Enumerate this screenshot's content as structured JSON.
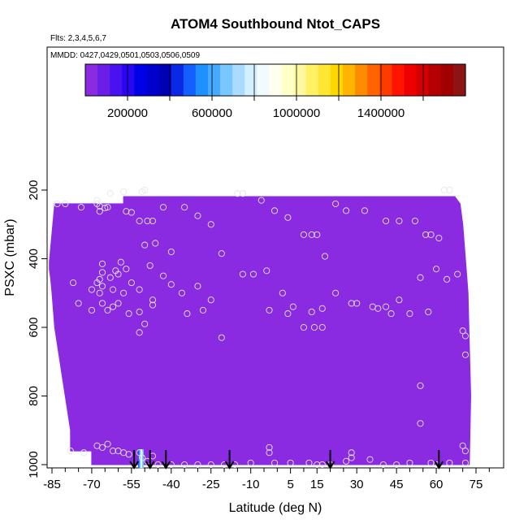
{
  "chart_data": {
    "type": "heatmap",
    "title": "ATOM4 Southbound Ntot_CAPS",
    "flights_label": "Flts: 2,3,4,5,6,7",
    "dates_label": "MMDD: 0427,0429,0501,0503,0506,0509",
    "xlabel": "Latitude (deg N)",
    "ylabel": "PSXC (mbar)",
    "xlim": [
      -87,
      80
    ],
    "ylim": [
      1010,
      40
    ],
    "y_reversed": true,
    "x_ticks": [
      -85,
      -70,
      -55,
      -40,
      -25,
      -10,
      5,
      15,
      30,
      45,
      60,
      75
    ],
    "x_minor_ticks": [
      -80,
      -75,
      -65,
      -60,
      -50,
      -45,
      -35,
      -30,
      -20,
      -15,
      -5,
      0,
      10,
      20,
      25,
      35,
      40,
      50,
      55,
      65,
      70,
      80
    ],
    "y_ticks": [
      200,
      400,
      600,
      800,
      1000
    ],
    "colorbar": {
      "ticks": [
        200000,
        600000,
        1000000,
        1400000
      ],
      "tick_labels": [
        "200000",
        "600000",
        "1000000",
        "1400000"
      ],
      "min": 0,
      "max": 1800000,
      "colors": [
        "#8a2be2",
        "#6a1ee8",
        "#4a12ee",
        "#2a06f2",
        "#0000e6",
        "#0000cc",
        "#0000b4",
        "#0a28e6",
        "#1460ff",
        "#1e90ff",
        "#46aaff",
        "#78c8ff",
        "#aadcff",
        "#d2f0ff",
        "#f0faff",
        "#fffff0",
        "#ffffc8",
        "#fff8a0",
        "#fff064",
        "#ffe632",
        "#ffd700",
        "#ffb400",
        "#ff8c00",
        "#ff6400",
        "#ff3c00",
        "#ff1400",
        "#ee0000",
        "#d20000",
        "#b40000",
        "#a00000",
        "#8c1414"
      ]
    },
    "field_color": "#8a2be2",
    "field_value": 0,
    "surface_hot_spot": {
      "lat_range": [
        -52.5,
        -50.5
      ],
      "colors": [
        "#2a5cff",
        "#6fd0ff",
        "#ffffff",
        "#6fd0ff"
      ]
    },
    "field_outline": [
      [
        -86,
        410
      ],
      [
        -84,
        240
      ],
      [
        -58,
        240
      ],
      [
        -58,
        225
      ],
      [
        -58,
        219
      ],
      [
        -38,
        219
      ],
      [
        -38,
        219
      ],
      [
        67,
        219
      ],
      [
        67,
        219
      ],
      [
        69,
        240
      ],
      [
        70,
        300
      ],
      [
        71,
        400
      ],
      [
        72,
        500
      ],
      [
        72.5,
        650
      ],
      [
        73,
        800
      ],
      [
        72.5,
        1000
      ],
      [
        -70,
        1000
      ],
      [
        -70,
        960
      ],
      [
        -78,
        960
      ],
      [
        -78,
        900
      ],
      [
        -80,
        800
      ],
      [
        -82,
        700
      ],
      [
        -84,
        600
      ],
      [
        -85,
        500
      ],
      [
        -85.5,
        460
      ],
      [
        -86,
        430
      ]
    ],
    "measurement_points": [
      [
        -83,
        240
      ],
      [
        -80,
        240
      ],
      [
        -74,
        250
      ],
      [
        -68,
        230
      ],
      [
        -68,
        240
      ],
      [
        -67,
        247
      ],
      [
        -67,
        262
      ],
      [
        -65,
        252
      ],
      [
        -64,
        250
      ],
      [
        -63,
        210
      ],
      [
        -58,
        205
      ],
      [
        -57,
        262
      ],
      [
        -55,
        265
      ],
      [
        -52,
        290
      ],
      [
        -51,
        205
      ],
      [
        -50,
        200
      ],
      [
        -49,
        290
      ],
      [
        -47,
        290
      ],
      [
        -43,
        250
      ],
      [
        -40,
        380
      ],
      [
        -35,
        250
      ],
      [
        -30,
        275
      ],
      [
        -25,
        300
      ],
      [
        -21,
        385
      ],
      [
        -15,
        210
      ],
      [
        -13,
        210
      ],
      [
        -6,
        230
      ],
      [
        -1,
        260
      ],
      [
        4,
        280
      ],
      [
        10,
        330
      ],
      [
        13,
        330
      ],
      [
        15,
        330
      ],
      [
        18,
        393
      ],
      [
        22,
        240
      ],
      [
        26,
        260
      ],
      [
        33,
        260
      ],
      [
        41,
        290
      ],
      [
        46,
        290
      ],
      [
        52,
        290
      ],
      [
        56,
        330
      ],
      [
        58,
        330
      ],
      [
        61,
        340
      ],
      [
        63,
        200
      ],
      [
        65,
        200
      ],
      [
        -66,
        415
      ],
      [
        -66,
        440
      ],
      [
        -63,
        455
      ],
      [
        -61,
        435
      ],
      [
        -60,
        445
      ],
      [
        -59,
        410
      ],
      [
        -57,
        430
      ],
      [
        -67,
        460
      ],
      [
        -68,
        470
      ],
      [
        -66,
        480
      ],
      [
        -62,
        490
      ],
      [
        -67,
        500
      ],
      [
        -70,
        490
      ],
      [
        -77,
        470
      ],
      [
        -75,
        530
      ],
      [
        -70,
        550
      ],
      [
        -66,
        530
      ],
      [
        -64,
        550
      ],
      [
        -62,
        540
      ],
      [
        -60,
        530
      ],
      [
        -58,
        500
      ],
      [
        -55,
        470
      ],
      [
        -52,
        490
      ],
      [
        -50,
        360
      ],
      [
        -48,
        420
      ],
      [
        -46,
        355
      ],
      [
        -43,
        450
      ],
      [
        -40,
        475
      ],
      [
        -36,
        500
      ],
      [
        -34,
        560
      ],
      [
        -30,
        480
      ],
      [
        -28,
        550
      ],
      [
        -25,
        520
      ],
      [
        -21,
        630
      ],
      [
        -13,
        445
      ],
      [
        -9,
        445
      ],
      [
        -4,
        435
      ],
      [
        -3,
        550
      ],
      [
        2,
        500
      ],
      [
        4,
        560
      ],
      [
        6,
        540
      ],
      [
        10,
        600
      ],
      [
        13,
        555
      ],
      [
        14,
        600
      ],
      [
        17,
        600
      ],
      [
        17,
        545
      ],
      [
        22,
        500
      ],
      [
        28,
        530
      ],
      [
        30,
        530
      ],
      [
        36,
        540
      ],
      [
        38,
        545
      ],
      [
        41,
        540
      ],
      [
        43,
        560
      ],
      [
        46,
        520
      ],
      [
        50,
        560
      ],
      [
        54,
        455
      ],
      [
        57,
        555
      ],
      [
        60,
        430
      ],
      [
        64,
        460
      ],
      [
        68,
        445
      ],
      [
        70,
        610
      ],
      [
        71,
        680
      ],
      [
        71,
        625
      ],
      [
        -52,
        555
      ],
      [
        -50,
        590
      ],
      [
        -52,
        615
      ],
      [
        -47,
        520
      ],
      [
        -47,
        535
      ],
      [
        -56,
        560
      ],
      [
        54,
        770
      ],
      [
        54,
        880
      ],
      [
        -78,
        960
      ],
      [
        -73,
        965
      ],
      [
        -68,
        945
      ],
      [
        -66,
        950
      ],
      [
        -64,
        940
      ],
      [
        -62,
        960
      ],
      [
        -60,
        960
      ],
      [
        -58,
        965
      ],
      [
        -56,
        970
      ],
      [
        -52,
        965
      ],
      [
        -51,
        980
      ],
      [
        -49,
        990
      ],
      [
        -47,
        975
      ],
      [
        -45,
        1000
      ],
      [
        -40,
        1000
      ],
      [
        -35,
        1000
      ],
      [
        -30,
        1000
      ],
      [
        -25,
        1000
      ],
      [
        -20,
        1000
      ],
      [
        -16,
        1000
      ],
      [
        -10,
        995
      ],
      [
        -3,
        950
      ],
      [
        -3,
        965
      ],
      [
        -1,
        995
      ],
      [
        5,
        995
      ],
      [
        12,
        995
      ],
      [
        15,
        1000
      ],
      [
        17,
        1000
      ],
      [
        20,
        1000
      ],
      [
        26,
        990
      ],
      [
        28,
        965
      ],
      [
        28,
        980
      ],
      [
        35,
        985
      ],
      [
        40,
        1000
      ],
      [
        45,
        1000
      ],
      [
        50,
        995
      ],
      [
        58,
        995
      ],
      [
        60,
        1000
      ],
      [
        65,
        995
      ],
      [
        70,
        945
      ],
      [
        71,
        960
      ],
      [
        71,
        995
      ]
    ],
    "arrows_lat": [
      -54,
      -48,
      -42,
      -18,
      20,
      61
    ]
  }
}
